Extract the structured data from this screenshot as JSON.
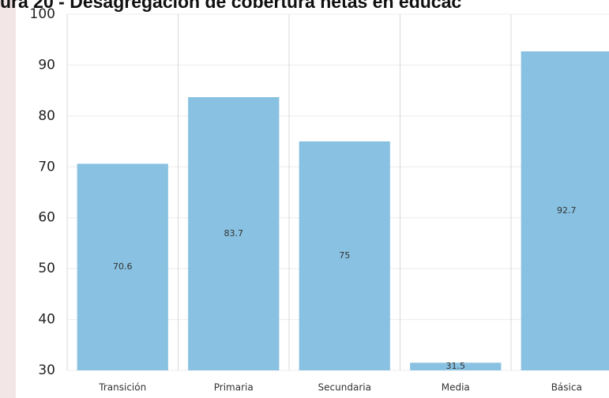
{
  "chart_data": {
    "type": "bar",
    "title": "ura 20 - Desagregación de cobertura netas en educac",
    "categories": [
      "Transición",
      "Primaria",
      "Secundaria",
      "Media",
      "Básica"
    ],
    "values": [
      70.6,
      83.7,
      75,
      31.5,
      92.7
    ],
    "color": "#88c1e1",
    "ylim": [
      30,
      100
    ],
    "yticks": [
      30,
      40,
      50,
      60,
      70,
      80,
      90,
      100
    ],
    "grid": true
  }
}
